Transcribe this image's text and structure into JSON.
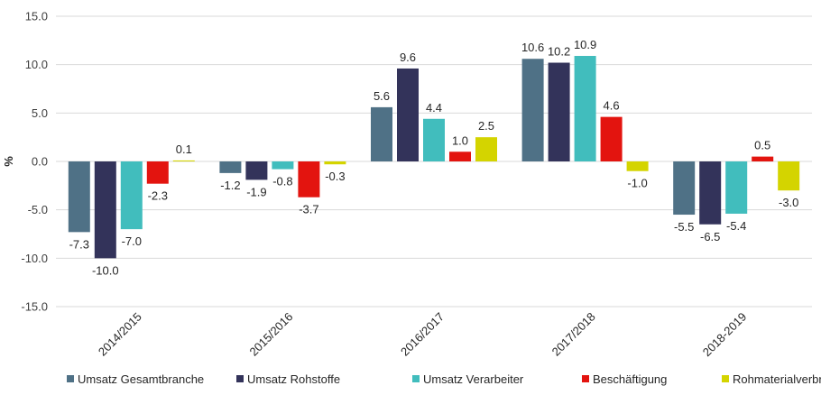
{
  "chart_data": {
    "type": "bar",
    "ylabel": "%",
    "xlabel": "",
    "title": "",
    "ylim": [
      -15,
      15
    ],
    "yticks": [
      "15.0",
      "10.0",
      "5.0",
      "0.0",
      "-5.0",
      "-10.0",
      "-15.0"
    ],
    "grid": true,
    "legend_position": "bottom",
    "categories": [
      "2014/2015",
      "2015/2016",
      "2016/2017",
      "2017/2018",
      "2018-2019"
    ],
    "series": [
      {
        "name": "Umsatz Gesamtbranche",
        "color": "#4f7186",
        "values": [
          -7.3,
          -1.2,
          5.6,
          10.6,
          -5.5
        ],
        "labels": [
          "-7.3",
          "-1.2",
          "5.6",
          "10.6",
          "-5.5"
        ]
      },
      {
        "name": "Umsatz Rohstoffe",
        "color": "#33335a",
        "values": [
          -10.0,
          -1.9,
          9.6,
          10.2,
          -6.5
        ],
        "labels": [
          "-10.0",
          "-1.9",
          "9.6",
          "10.2",
          "-6.5"
        ]
      },
      {
        "name": "Umsatz Verarbeiter",
        "color": "#41bdbd",
        "values": [
          -7.0,
          -0.8,
          4.4,
          10.9,
          -5.4
        ],
        "labels": [
          "-7.0",
          "-0.8",
          "4.4",
          "10.9",
          "-5.4"
        ]
      },
      {
        "name": "Beschäftigung",
        "color": "#e3140f",
        "values": [
          -2.3,
          -3.7,
          1.0,
          4.6,
          0.5
        ],
        "labels": [
          "-2.3",
          "-3.7",
          "1.0",
          "4.6",
          "0.5"
        ]
      },
      {
        "name": "Rohmaterialverbrauch",
        "color": "#d4d400",
        "values": [
          0.1,
          -0.3,
          2.5,
          -1.0,
          -3.0
        ],
        "labels": [
          "0.1",
          "-0.3",
          "2.5",
          "-1.0",
          "-3.0"
        ]
      }
    ]
  }
}
